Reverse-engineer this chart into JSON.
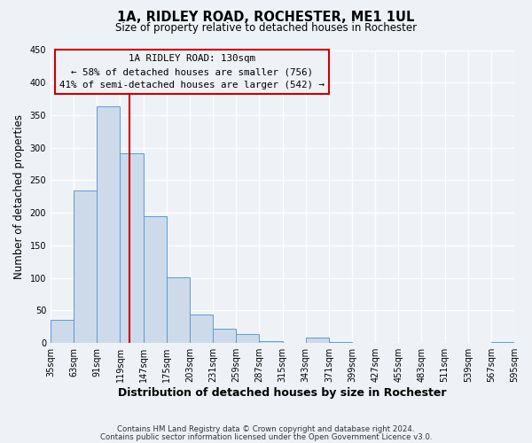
{
  "title": "1A, RIDLEY ROAD, ROCHESTER, ME1 1UL",
  "subtitle": "Size of property relative to detached houses in Rochester",
  "xlabel": "Distribution of detached houses by size in Rochester",
  "ylabel": "Number of detached properties",
  "footer_lines": [
    "Contains HM Land Registry data © Crown copyright and database right 2024.",
    "Contains public sector information licensed under the Open Government Licence v3.0."
  ],
  "bar_edges": [
    35,
    63,
    91,
    119,
    147,
    175,
    203,
    231,
    259,
    287,
    315,
    343,
    371,
    399,
    427,
    455,
    483,
    511,
    539,
    567,
    595
  ],
  "bar_values": [
    35,
    234,
    363,
    292,
    195,
    101,
    44,
    22,
    14,
    3,
    0,
    9,
    1,
    0,
    0,
    0,
    0,
    0,
    0,
    1
  ],
  "bar_color": "#ccdaea",
  "bar_edge_color": "#5b9bd5",
  "vline_x": 130,
  "vline_color": "#cc0000",
  "ylim": [
    0,
    450
  ],
  "yticks": [
    0,
    50,
    100,
    150,
    200,
    250,
    300,
    350,
    400,
    450
  ],
  "annotation_box_text": "1A RIDLEY ROAD: 130sqm\n← 58% of detached houses are smaller (756)\n41% of semi-detached houses are larger (542) →",
  "annotation_box_color": "#cc0000",
  "bg_color": "#eef2f7",
  "grid_color": "#ffffff",
  "tick_labels": [
    "35sqm",
    "63sqm",
    "91sqm",
    "119sqm",
    "147sqm",
    "175sqm",
    "203sqm",
    "231sqm",
    "259sqm",
    "287sqm",
    "315sqm",
    "343sqm",
    "371sqm",
    "399sqm",
    "427sqm",
    "455sqm",
    "483sqm",
    "511sqm",
    "539sqm",
    "567sqm",
    "595sqm"
  ]
}
